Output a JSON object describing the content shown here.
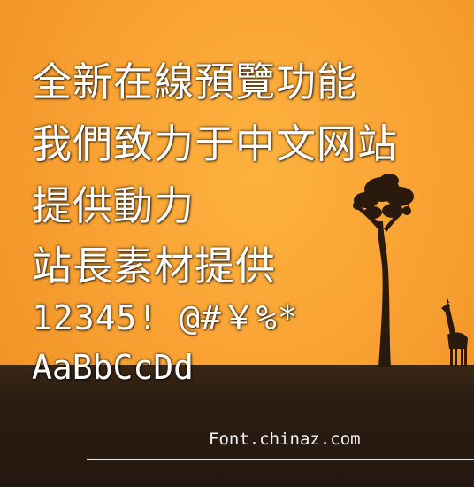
{
  "sample_lines": [
    "全新在線預覽功能",
    "我們致力于中文网站",
    "提供動力",
    "站長素材提供",
    "12345! @#￥%*",
    "AaBbCcDd"
  ],
  "watermark": "Font.chinaz.com",
  "colors": {
    "sky": "#f9a233",
    "ground": "#2a1c10",
    "text": "#ffffff",
    "silhouette": "#2a1a0e"
  },
  "icons": [
    "tree-silhouette",
    "giraffe-silhouette"
  ]
}
